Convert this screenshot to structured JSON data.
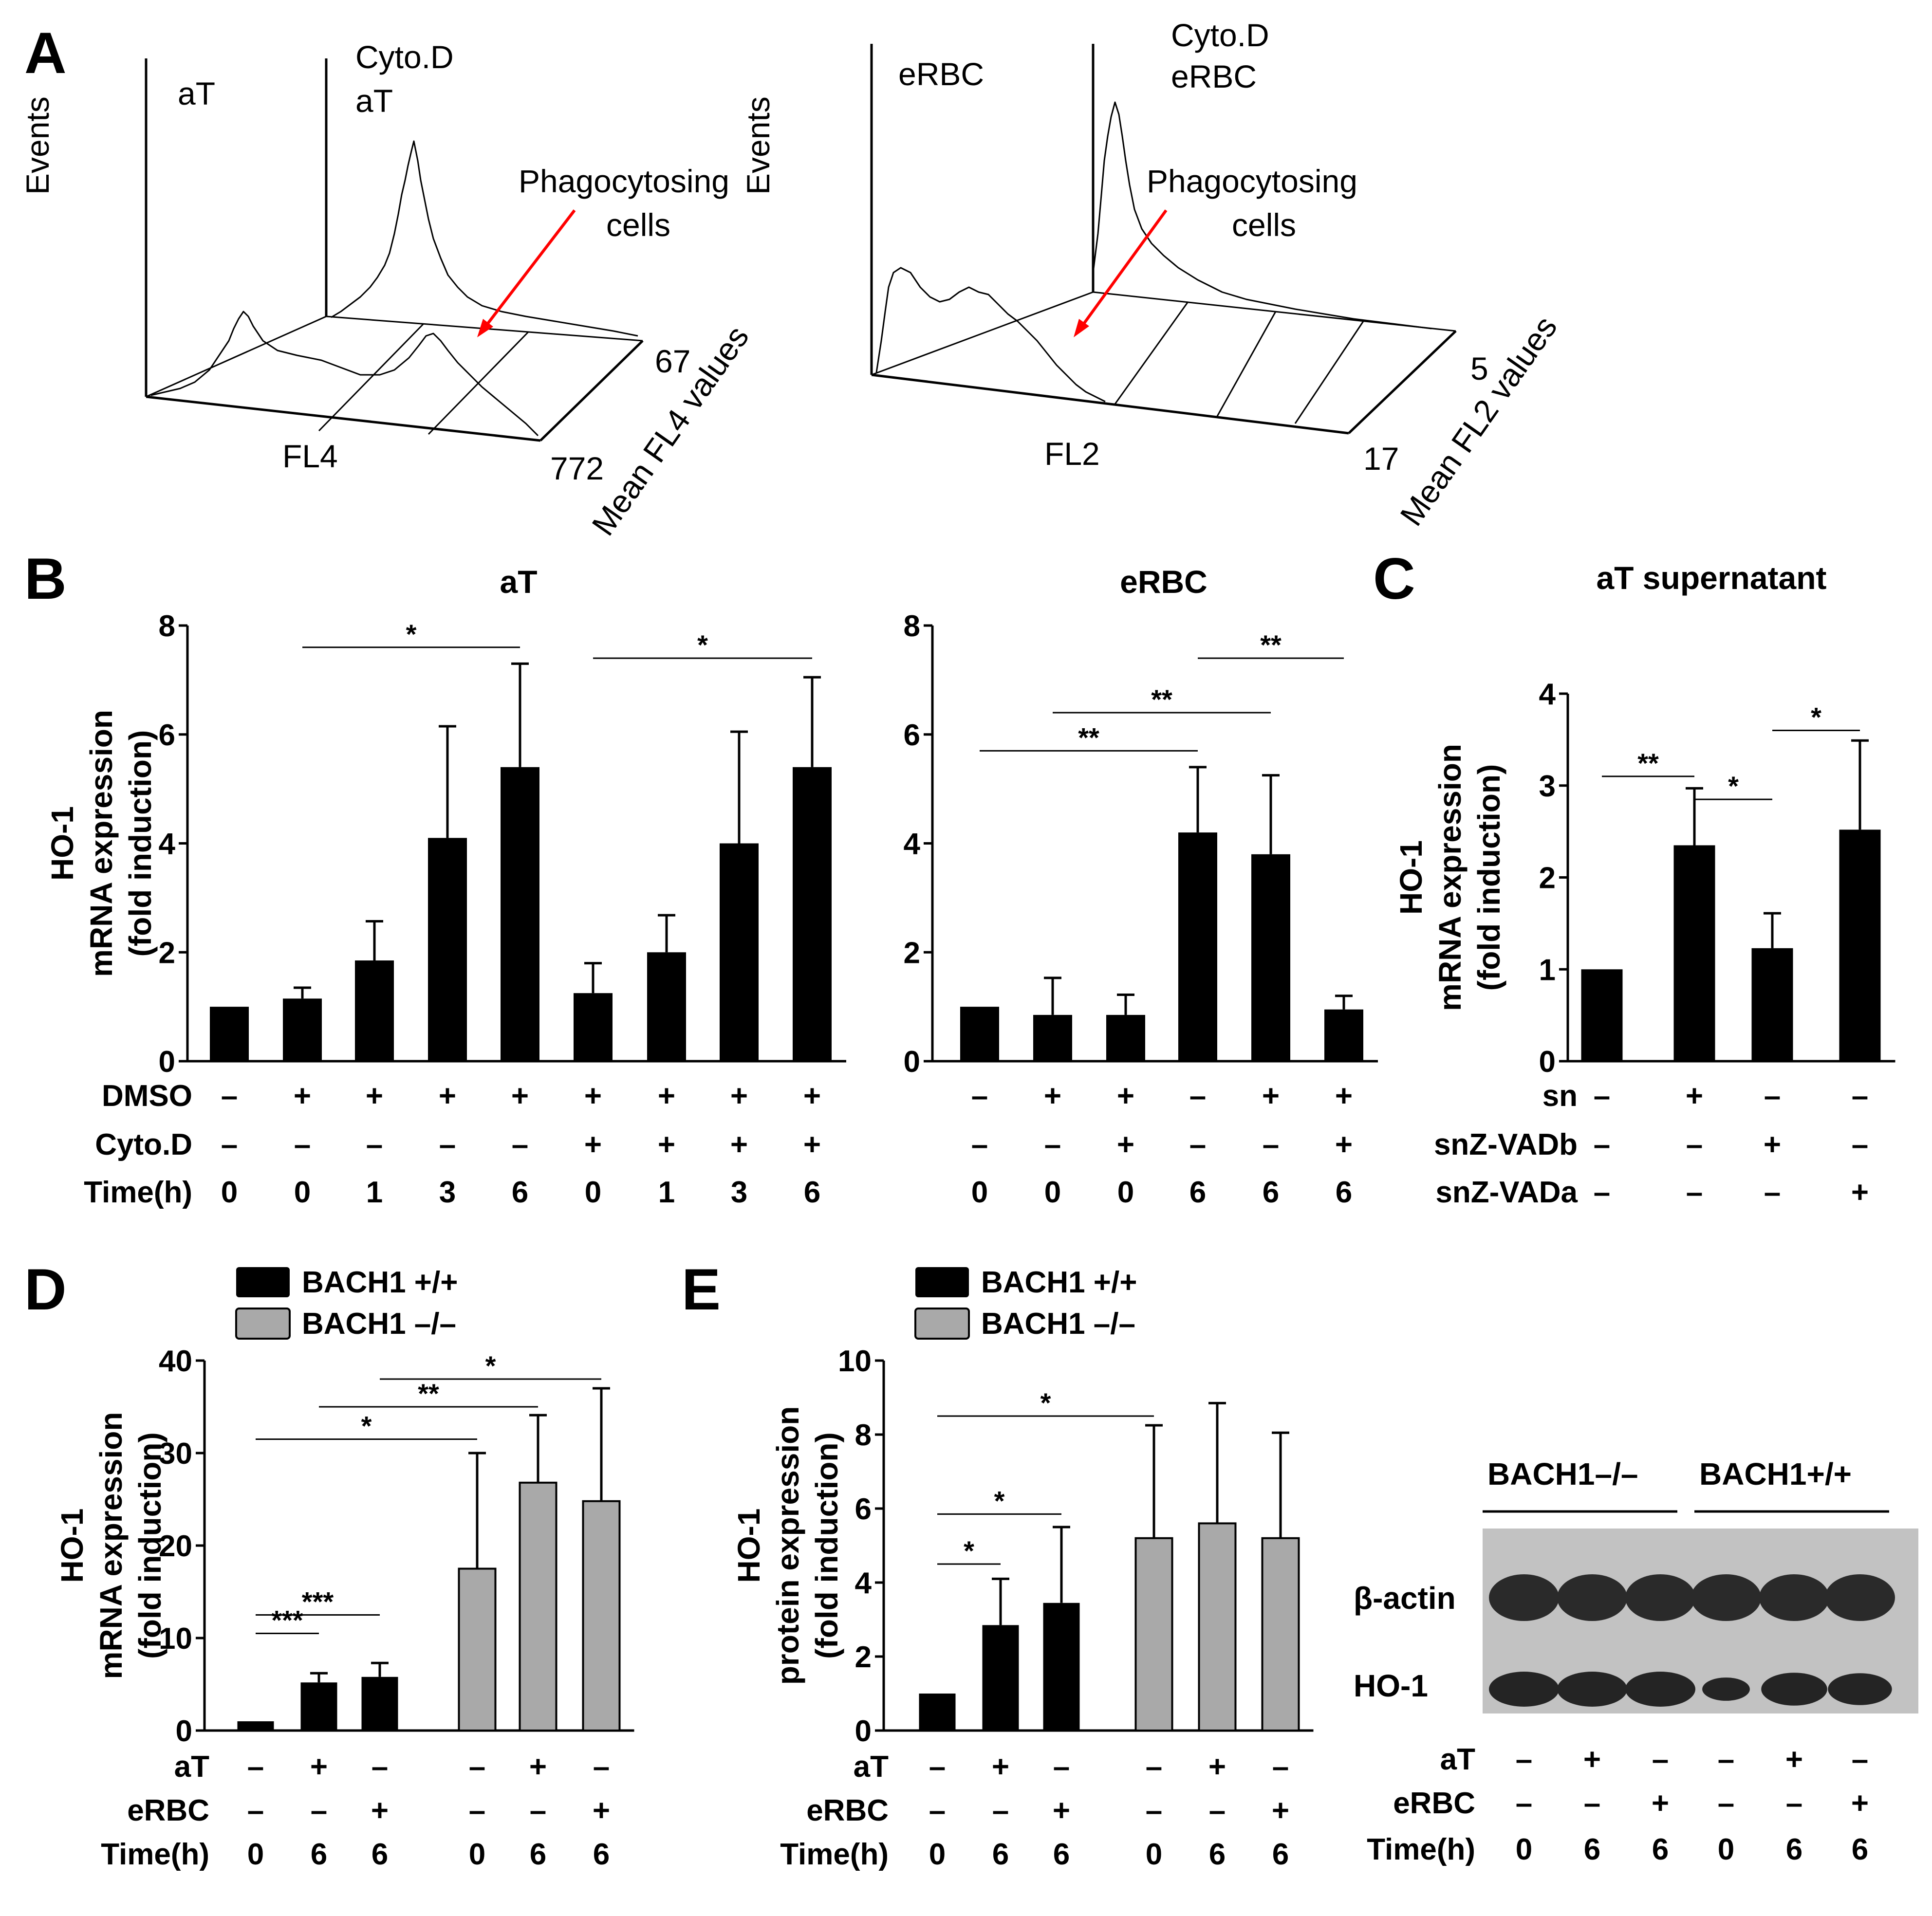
{
  "panel_A": {
    "label": "A",
    "left": {
      "y_label": "Events",
      "top_left_label": "aT",
      "top_right_label_line1": "Cyto.D",
      "top_right_label_line2": "aT",
      "annotation_line1": "Phagocytosing",
      "annotation_line2": "cells",
      "x_label": "FL4",
      "value_back": "67",
      "value_front": "772",
      "side_label": "Mean FL4 values"
    },
    "right": {
      "y_label": "Events",
      "top_left_label": "eRBC",
      "top_right_label_line1": "Cyto.D",
      "top_right_label_line2": "eRBC",
      "annotation_line1": "Phagocytosing",
      "annotation_line2": "cells",
      "x_label": "FL2",
      "value_back": "5",
      "value_front": "17",
      "side_label": "Mean FL2 values"
    }
  },
  "panel_B": {
    "label": "B"
  },
  "panel_C": {
    "label": "C"
  },
  "panel_D": {
    "label": "D"
  },
  "panel_E": {
    "label": "E"
  },
  "chart_data": [
    {
      "id": "B-aT",
      "type": "bar",
      "title": "aT",
      "ylabel": [
        "HO-1",
        "mRNA expression",
        "(fold induction)"
      ],
      "ylim": [
        0,
        8
      ],
      "yticks": [
        "0",
        "2",
        "4",
        "6",
        "8"
      ],
      "values": [
        1.0,
        1.15,
        1.85,
        4.1,
        5.4,
        1.25,
        2.0,
        4.0,
        5.4
      ],
      "errors": [
        0,
        0.2,
        0.72,
        2.05,
        1.9,
        0.55,
        0.68,
        2.05,
        1.65
      ],
      "colors": [
        "black",
        "black",
        "black",
        "black",
        "black",
        "black",
        "black",
        "black",
        "black"
      ],
      "conditions": [
        {
          "name": "DMSO",
          "values": [
            "–",
            "+",
            "+",
            "+",
            "+",
            "+",
            "+",
            "+",
            "+"
          ]
        },
        {
          "name": "Cyto.D",
          "values": [
            "–",
            "–",
            "–",
            "–",
            "–",
            "+",
            "+",
            "+",
            "+"
          ]
        },
        {
          "name": "Time(h)",
          "values": [
            "0",
            "0",
            "1",
            "3",
            "6",
            "0",
            "1",
            "3",
            "6"
          ]
        }
      ],
      "significance": [
        {
          "from": 1,
          "to": 4,
          "label": "*",
          "y": 7.6
        },
        {
          "from": 5,
          "to": 8,
          "label": "*",
          "y": 7.4
        }
      ]
    },
    {
      "id": "B-eRBC",
      "type": "bar",
      "title": "eRBC",
      "ylim": [
        0,
        8
      ],
      "yticks": [
        "0",
        "2",
        "4",
        "6",
        "8"
      ],
      "values": [
        1.0,
        0.85,
        0.85,
        4.2,
        3.8,
        0.95
      ],
      "errors": [
        0,
        0.68,
        0.37,
        1.2,
        1.45,
        0.25
      ],
      "colors": [
        "black",
        "black",
        "black",
        "black",
        "black",
        "black"
      ],
      "conditions": [
        {
          "name": "",
          "values": [
            "–",
            "+",
            "+",
            "–",
            "+",
            "+"
          ]
        },
        {
          "name": "",
          "values": [
            "–",
            "–",
            "+",
            "–",
            "–",
            "+"
          ]
        },
        {
          "name": "",
          "values": [
            "0",
            "0",
            "0",
            "6",
            "6",
            "6"
          ]
        }
      ],
      "significance": [
        {
          "from": 0,
          "to": 3,
          "label": "**",
          "y": 5.7
        },
        {
          "from": 1,
          "to": 4,
          "label": "**",
          "y": 6.4
        },
        {
          "from": 3,
          "to": 5,
          "label": "**",
          "y": 7.4
        }
      ]
    },
    {
      "id": "C",
      "type": "bar",
      "title": "aT supernatant",
      "ylabel": [
        "HO-1",
        "mRNA expression",
        "(fold induction)"
      ],
      "ylim": [
        0,
        4
      ],
      "yticks": [
        "0",
        "1",
        "2",
        "3",
        "4"
      ],
      "values": [
        1.0,
        2.35,
        1.23,
        2.52
      ],
      "errors": [
        0,
        0.62,
        0.38,
        0.97
      ],
      "colors": [
        "black",
        "black",
        "black",
        "black"
      ],
      "conditions": [
        {
          "name": "sn",
          "values": [
            "–",
            "+",
            "–",
            "–"
          ]
        },
        {
          "name": "snZ-VADb",
          "values": [
            "–",
            "–",
            "+",
            "–"
          ]
        },
        {
          "name": "snZ-VADa",
          "values": [
            "–",
            "–",
            "–",
            "+"
          ]
        }
      ],
      "significance": [
        {
          "from": 0,
          "to": 1,
          "label": "**",
          "y": 3.1
        },
        {
          "from": 1,
          "to": 2,
          "label": "*",
          "y": 2.85
        },
        {
          "from": 2,
          "to": 3,
          "label": "*",
          "y": 3.6
        }
      ]
    },
    {
      "id": "D",
      "type": "bar",
      "legend": [
        {
          "label": "BACH1 +/+",
          "color": "black"
        },
        {
          "label": "BACH1 –/–",
          "color": "gray"
        }
      ],
      "ylabel": [
        "HO-1",
        "mRNA expression",
        "(fold induction)"
      ],
      "ylim": [
        0,
        40
      ],
      "yticks": [
        "0",
        "10",
        "20",
        "30",
        "40"
      ],
      "values": [
        1.0,
        5.2,
        5.8,
        17.5,
        26.8,
        24.8
      ],
      "errors": [
        0,
        1.0,
        1.5,
        12.5,
        7.3,
        12.2
      ],
      "colors": [
        "black",
        "black",
        "black",
        "gray",
        "gray",
        "gray"
      ],
      "conditions": [
        {
          "name": "aT",
          "values": [
            "–",
            "+",
            "–",
            "–",
            "+",
            "–"
          ]
        },
        {
          "name": "eRBC",
          "values": [
            "–",
            "–",
            "+",
            "–",
            "–",
            "+"
          ]
        },
        {
          "name": "Time(h)",
          "values": [
            "0",
            "6",
            "6",
            "0",
            "6",
            "6"
          ]
        }
      ],
      "significance": [
        {
          "from": 0,
          "to": 1,
          "label": "***",
          "y": 10.5
        },
        {
          "from": 0,
          "to": 2,
          "label": "***",
          "y": 12.5
        },
        {
          "from": 0,
          "to": 3,
          "label": "*",
          "y": 31.5
        },
        {
          "from": 1,
          "to": 4,
          "label": "**",
          "y": 35.0
        },
        {
          "from": 2,
          "to": 5,
          "label": "*",
          "y": 38.0
        }
      ]
    },
    {
      "id": "E",
      "type": "bar",
      "legend": [
        {
          "label": "BACH1 +/+",
          "color": "black"
        },
        {
          "label": "BACH1 –/–",
          "color": "gray"
        }
      ],
      "ylabel": [
        "HO-1",
        "protein expression",
        "(fold induction)"
      ],
      "ylim": [
        0,
        10
      ],
      "yticks": [
        "0",
        "2",
        "4",
        "6",
        "8",
        "10"
      ],
      "values": [
        1.0,
        2.85,
        3.45,
        5.2,
        5.6,
        5.2
      ],
      "errors": [
        0,
        1.25,
        2.05,
        3.05,
        3.25,
        2.85
      ],
      "colors": [
        "black",
        "black",
        "black",
        "gray",
        "gray",
        "gray"
      ],
      "conditions": [
        {
          "name": "aT",
          "values": [
            "–",
            "+",
            "–",
            "–",
            "+",
            "–"
          ]
        },
        {
          "name": "eRBC",
          "values": [
            "–",
            "–",
            "+",
            "–",
            "–",
            "+"
          ]
        },
        {
          "name": "Time(h)",
          "values": [
            "0",
            "6",
            "6",
            "0",
            "6",
            "6"
          ]
        }
      ],
      "significance": [
        {
          "from": 0,
          "to": 1,
          "label": "*",
          "y": 4.5
        },
        {
          "from": 0,
          "to": 2,
          "label": "*",
          "y": 5.85
        },
        {
          "from": 0,
          "to": 3,
          "label": "*",
          "y": 8.5
        }
      ]
    }
  ],
  "blot": {
    "group_left": "BACH1–/–",
    "group_right": "BACH1+/+",
    "row_top": "β-actin",
    "row_bottom": "HO-1",
    "conditions": [
      {
        "name": "aT",
        "values": [
          "–",
          "+",
          "–",
          "–",
          "+",
          "–"
        ]
      },
      {
        "name": "eRBC",
        "values": [
          "–",
          "–",
          "+",
          "–",
          "–",
          "+"
        ]
      },
      {
        "name": "Time(h)",
        "values": [
          "0",
          "6",
          "6",
          "0",
          "6",
          "6"
        ]
      }
    ],
    "ho1_band_intensity": [
      1.0,
      1.0,
      1.0,
      0.45,
      0.9,
      0.85
    ]
  }
}
